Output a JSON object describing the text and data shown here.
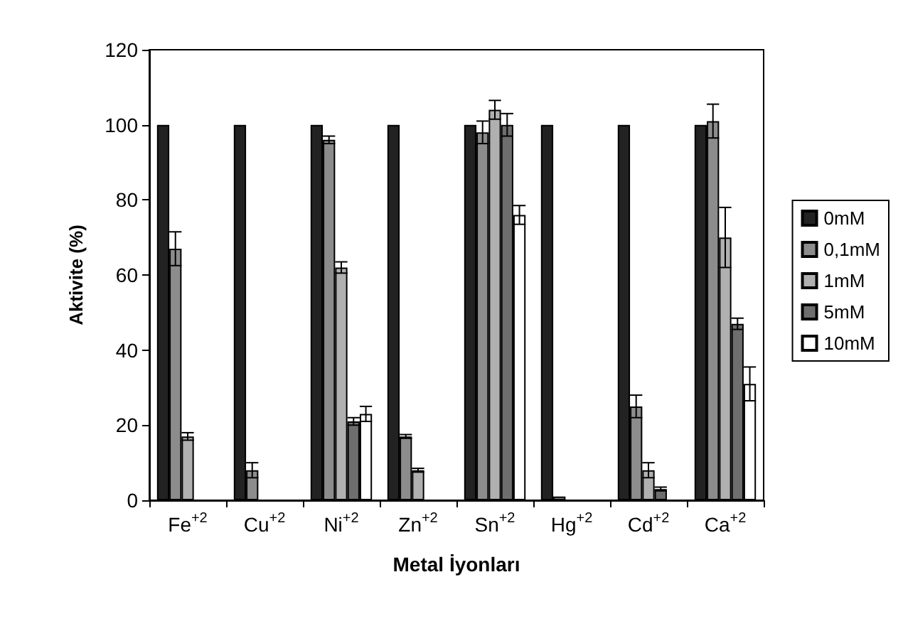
{
  "chart_data": {
    "type": "bar",
    "xlabel": "Metal İyonları",
    "ylabel": "Aktivite (%)",
    "categories": [
      "Fe$^{+2}$",
      "Cu$^{+2}$",
      "Ni$^{+2}$",
      "Zn$^{+2}$",
      "Sn$^{+2}$",
      "Hg$^{+2}$",
      "Cd$^{+2}$",
      "Ca$^{+2}$"
    ],
    "series": [
      {
        "name": "0mM",
        "color": "#222222",
        "values": [
          100,
          100,
          100,
          100,
          100,
          100,
          100,
          100
        ]
      },
      {
        "name": "0,1mM",
        "color": "#8c8c8c",
        "values": [
          67,
          8,
          96,
          17,
          98,
          1,
          25,
          101
        ],
        "errors": [
          4.5,
          2,
          1,
          0.5,
          3,
          null,
          3,
          4.5
        ]
      },
      {
        "name": "1mM",
        "color": "#b0b0b0",
        "values": [
          17,
          null,
          62,
          8,
          104,
          null,
          8,
          70
        ],
        "errors": [
          1,
          null,
          1.5,
          0.5,
          2.5,
          null,
          2,
          8
        ]
      },
      {
        "name": "5mM",
        "color": "#6e6e6e",
        "values": [
          null,
          null,
          21,
          null,
          100,
          null,
          3,
          47
        ],
        "errors": [
          null,
          null,
          1,
          null,
          3,
          null,
          0.5,
          1.5
        ]
      },
      {
        "name": "10mM",
        "color": "#ffffff",
        "values": [
          null,
          null,
          23,
          null,
          76,
          null,
          null,
          31
        ],
        "errors": [
          null,
          null,
          2,
          null,
          2.5,
          null,
          null,
          4.5
        ]
      }
    ],
    "ylim": [
      0,
      120
    ],
    "yticks": [
      0,
      20,
      40,
      60,
      80,
      100,
      120
    ],
    "grid": false,
    "legend": "right"
  }
}
